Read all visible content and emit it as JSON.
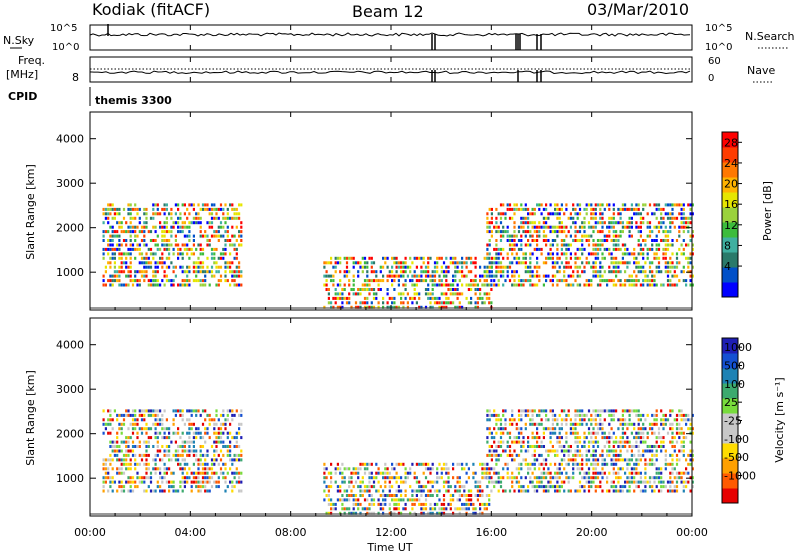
{
  "header": {
    "station": "Kodiak (fitACF)",
    "beam": "Beam 12",
    "date": "03/Mar/2010"
  },
  "labels": {
    "nsky": "N.Sky",
    "nsearch": "N.Search",
    "freq": "Freq.",
    "mhz": "[MHz]",
    "nave": "Nave",
    "cpid": "CPID",
    "cpid_value": "themis 3300",
    "scale_hi": "10^5",
    "scale_lo": "10^0",
    "freq_tick": "8",
    "nave_hi": "60",
    "nave_lo": "0"
  },
  "colors": {
    "power": [
      "#0000ff",
      "#0050c8",
      "#2a7a6a",
      "#3fb0a0",
      "#3cbc3c",
      "#9ad23c",
      "#e6e600",
      "#ffb400",
      "#ff7800",
      "#ff3c00",
      "#ff0000"
    ],
    "velocity": [
      "#e60000",
      "#ff5a00",
      "#ffa000",
      "#ffdc00",
      "#c8c8c8",
      "#c8c8c8",
      "#78dc3c",
      "#3caa6e",
      "#1e82b4",
      "#1450d2",
      "#1e1eb4"
    ]
  },
  "chart_data": [
    {
      "type": "heatmap",
      "panel": "power",
      "ylabel": "Slant Range [km]",
      "xlim": [
        0,
        24
      ],
      "ylim": [
        150,
        4600
      ],
      "yticks": [
        "1000",
        "2000",
        "3000",
        "4000"
      ],
      "colorbar_label": "Power [dB]",
      "colorbar_ticks": [
        "4",
        "8",
        "12",
        "16",
        "20",
        "24",
        "28"
      ],
      "scatter_bands": [
        {
          "t0": 0.5,
          "t1": 6.0,
          "r0": 700,
          "r1": 2500
        },
        {
          "t0": 9.3,
          "t1": 16.0,
          "r0": 200,
          "r1": 1300
        },
        {
          "t0": 15.8,
          "t1": 24.0,
          "r0": 700,
          "r1": 2500
        }
      ]
    },
    {
      "type": "heatmap",
      "panel": "velocity",
      "ylabel": "Slant Range [km]",
      "xlim": [
        0,
        24
      ],
      "ylim": [
        150,
        4600
      ],
      "yticks": [
        "1000",
        "2000",
        "3000",
        "4000"
      ],
      "colorbar_label": "Velocity [m s⁻¹]",
      "colorbar_ticks": [
        "-1000",
        "-500",
        "-100",
        "-25",
        "25",
        "100",
        "500",
        "1000"
      ],
      "scatter_bands": [
        {
          "t0": 0.5,
          "t1": 6.0,
          "r0": 700,
          "r1": 2500
        },
        {
          "t0": 9.3,
          "t1": 16.0,
          "r0": 200,
          "r1": 1300
        },
        {
          "t0": 15.8,
          "t1": 24.0,
          "r0": 700,
          "r1": 2500
        }
      ]
    }
  ],
  "xaxis": {
    "label": "Time UT",
    "ticks": [
      "00:00",
      "04:00",
      "08:00",
      "12:00",
      "16:00",
      "20:00",
      "00:00"
    ]
  }
}
